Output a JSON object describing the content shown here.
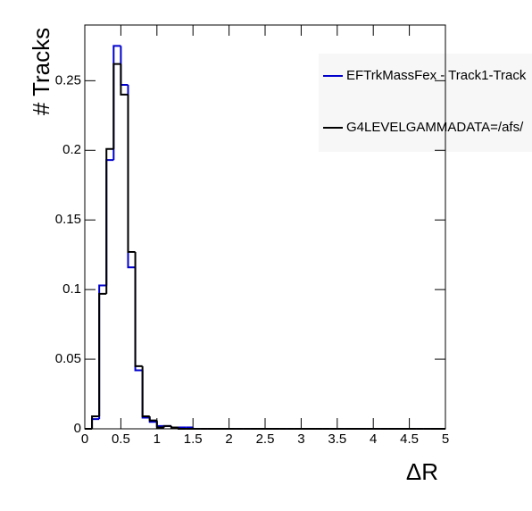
{
  "chart_data": {
    "type": "histogram",
    "xlabel": "ΔR",
    "ylabel": "# Tracks",
    "bins": [
      0,
      0.1,
      0.2,
      0.3,
      0.4,
      0.5,
      0.6,
      0.7,
      0.8,
      0.9,
      1,
      1.1,
      1.2,
      1.3,
      1.4,
      1.5,
      1.6,
      1.7,
      1.8,
      1.9,
      2,
      2.1,
      2.2,
      2.3,
      2.4,
      2.5,
      2.6,
      2.7,
      2.8,
      2.9,
      3,
      3.1,
      3.2,
      3.3,
      3.4,
      3.5,
      3.6,
      3.7,
      3.8,
      3.9,
      4,
      4.1,
      4.2,
      4.3,
      4.4,
      4.5,
      4.6,
      4.7,
      4.8,
      4.9,
      5
    ],
    "series": [
      {
        "name": "EFTrkMassFex - Track1-Track",
        "color": "#0000cc",
        "values": [
          0,
          0.007,
          0.103,
          0.193,
          0.275,
          0.247,
          0.116,
          0.042,
          0.008,
          0.005,
          0.002,
          0.002,
          0.001,
          0.001,
          0.001,
          0,
          0,
          0,
          0,
          0,
          0,
          0,
          0,
          0,
          0,
          0,
          0,
          0,
          0,
          0,
          0,
          0,
          0,
          0,
          0,
          0,
          0,
          0,
          0,
          0,
          0,
          0,
          0,
          0,
          0,
          0,
          0,
          0,
          0,
          0
        ]
      },
      {
        "name": "G4LEVELGAMMADATA=/afs/",
        "color": "#000000",
        "values": [
          0,
          0.009,
          0.097,
          0.201,
          0.262,
          0.24,
          0.127,
          0.045,
          0.009,
          0.006,
          0.001,
          0.002,
          0.001,
          0,
          0,
          0,
          0,
          0,
          0,
          0,
          0,
          0,
          0,
          0,
          0,
          0,
          0,
          0,
          0,
          0,
          0,
          0,
          0,
          0,
          0,
          0,
          0,
          0,
          0,
          0,
          0,
          0,
          0,
          0,
          0,
          0,
          0,
          0,
          0,
          0
        ]
      }
    ],
    "xlim": [
      0,
      5
    ],
    "ylim": [
      0,
      0.29
    ],
    "xticks": [
      0,
      0.5,
      1,
      1.5,
      2,
      2.5,
      3,
      3.5,
      4,
      4.5,
      5
    ],
    "yticks": [
      0,
      0.05,
      0.1,
      0.15,
      0.2,
      0.25
    ]
  }
}
